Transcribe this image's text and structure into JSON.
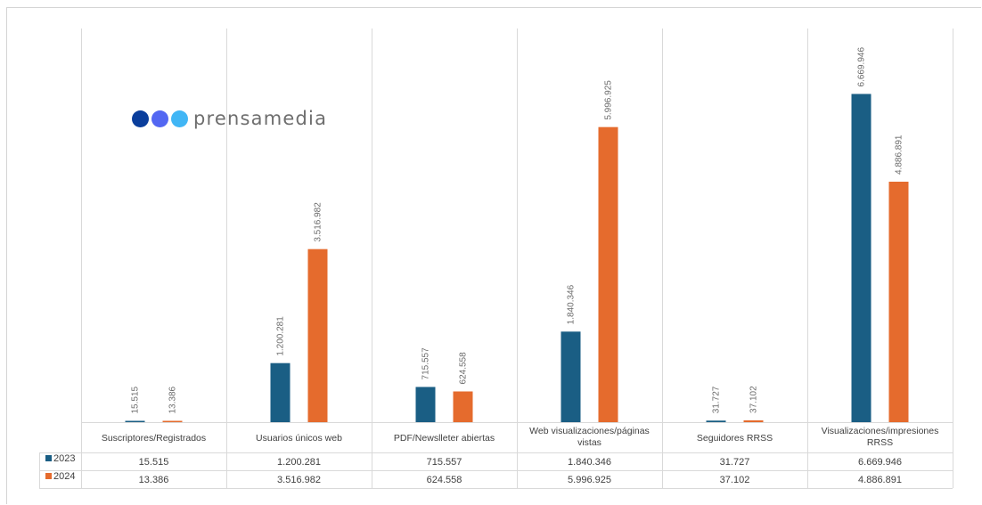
{
  "logo": {
    "text": "prensamedia",
    "dot_colors": [
      "#0a3e9c",
      "#5367f2",
      "#41b6f5"
    ]
  },
  "colors": {
    "s2023": "#1a5e84",
    "s2024": "#e56b2d",
    "grid": "#d9d9d9"
  },
  "chart_data": {
    "type": "bar",
    "title": "",
    "xlabel": "",
    "ylabel": "",
    "ylim": [
      0,
      8000000
    ],
    "grid": false,
    "legend": "data-table",
    "categories": [
      [
        "Suscriptores/Registrados"
      ],
      [
        "Usuarios únicos web"
      ],
      [
        "PDF/Newslleter abiertas"
      ],
      [
        "Web visualizaciones/páginas",
        "vistas"
      ],
      [
        "Seguidores RRSS"
      ],
      [
        "Visualizaciones/impresiones",
        "RRSS"
      ]
    ],
    "series": [
      {
        "name": "2023",
        "values": [
          15515,
          1200281,
          715557,
          1840346,
          31727,
          6669946
        ],
        "labels": [
          "15.515",
          "1.200.281",
          "715.557",
          "1.840.346",
          "31.727",
          "6.669.946"
        ]
      },
      {
        "name": "2024",
        "values": [
          13386,
          3516982,
          624558,
          5996925,
          37102,
          4886891
        ],
        "labels": [
          "13.386",
          "3.516.982",
          "624.558",
          "5.996.925",
          "37.102",
          "4.886.891"
        ]
      }
    ]
  }
}
